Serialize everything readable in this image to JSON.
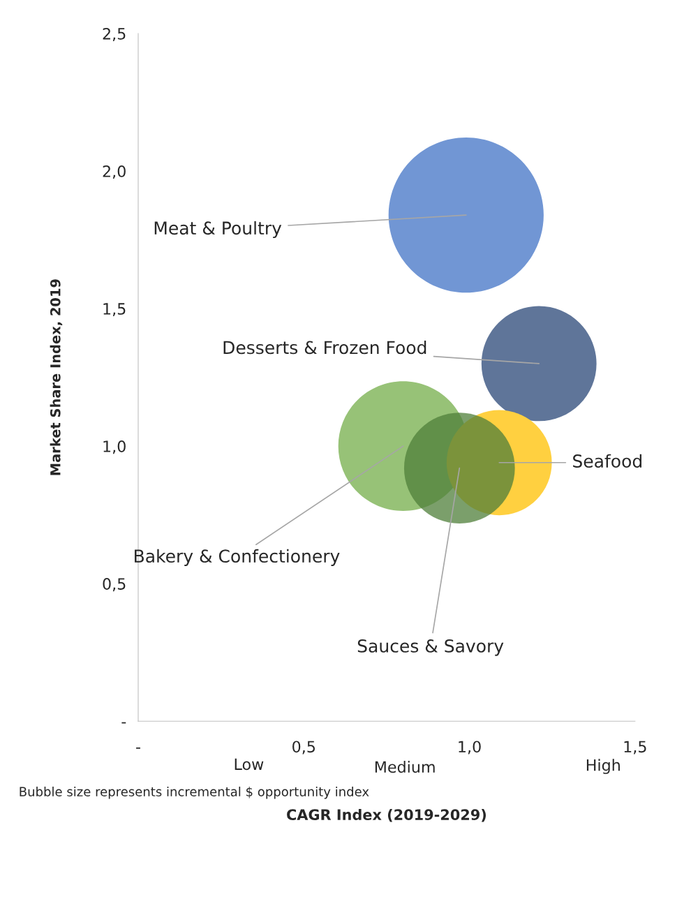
{
  "chart_data": {
    "type": "bubble",
    "xlabel": "CAGR Index (2019-2029)",
    "ylabel": "Market Share Index, 2019",
    "xlim": [
      0,
      1.5
    ],
    "xticks": [
      {
        "value": 0,
        "label": "-"
      },
      {
        "value": 0.5,
        "label": "0,5"
      },
      {
        "value": 1.0,
        "label": "1,0"
      },
      {
        "value": 1.5,
        "label": "1,5"
      }
    ],
    "ylim": [
      0,
      2.5
    ],
    "yticks": [
      {
        "value": 0,
        "label": "-"
      },
      {
        "value": 0.5,
        "label": "0,5"
      },
      {
        "value": 1.0,
        "label": "1,0"
      },
      {
        "value": 1.5,
        "label": "1,5"
      },
      {
        "value": 2.0,
        "label": "2,0"
      },
      {
        "value": 2.5,
        "label": "2,5"
      }
    ],
    "grid": false,
    "legend": false,
    "series": [
      {
        "name": "Meat & Poultry",
        "color": "#7196d4",
        "x": [
          0.99
        ],
        "values": [
          1.84
        ],
        "sizes": [
          1
        ]
      },
      {
        "name": "Desserts & Frozen Food",
        "color": "#5f7599",
        "x": [
          1.21
        ],
        "values": [
          1.3
        ],
        "sizes": [
          0.55
        ]
      },
      {
        "name": "Bakery & Confectionery",
        "color": "#97c277",
        "x": [
          0.8
        ],
        "values": [
          1.0
        ],
        "sizes": [
          0.7
        ]
      },
      {
        "name": "Seafood",
        "color": "#ffd040",
        "x": [
          1.09
        ],
        "values": [
          0.94
        ],
        "sizes": [
          0.46
        ]
      },
      {
        "name": "Sauces & Savory",
        "color": "#4f7f3a",
        "x": [
          0.97
        ],
        "values": [
          0.92
        ],
        "sizes": [
          0.51
        ]
      }
    ],
    "annotations": [
      "Low",
      "Medium",
      "High",
      "Bubble size represents incremental $ opportunity index"
    ]
  }
}
